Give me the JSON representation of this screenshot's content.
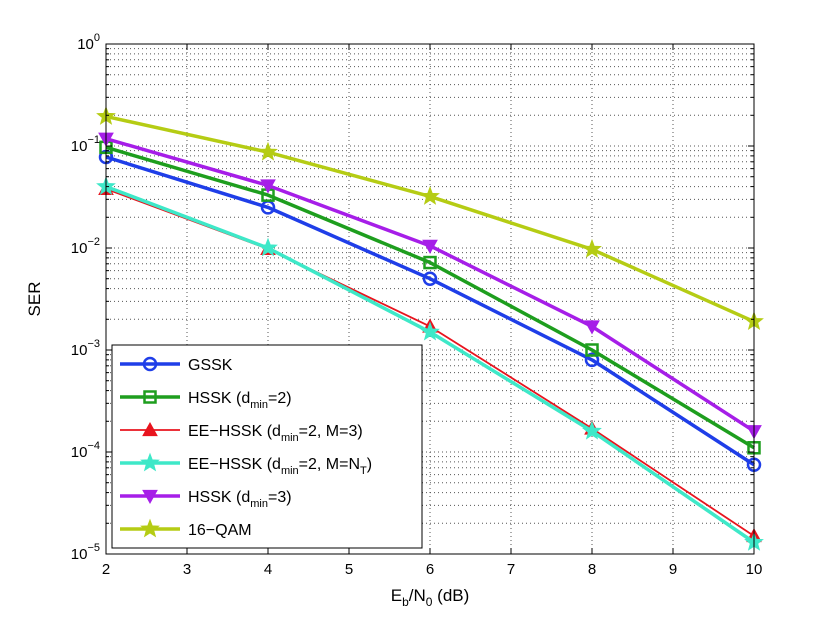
{
  "chart_data": {
    "type": "line",
    "title": "",
    "xlabel": {
      "base": "E",
      "sub1": "b",
      "mid": "/N",
      "sub2": "0",
      "tail": " (dB)"
    },
    "ylabel": "SER",
    "xlim": [
      2,
      10
    ],
    "ylim": [
      1e-05,
      1
    ],
    "yscale": "log",
    "grid": true,
    "legend_position": "bottom-left",
    "x_ticks": [
      2,
      3,
      4,
      5,
      6,
      7,
      8,
      9,
      10
    ],
    "y_ticks": [
      {
        "value": 1,
        "base": "10",
        "exp": "0"
      },
      {
        "value": 0.1,
        "base": "10",
        "exp": "−1"
      },
      {
        "value": 0.01,
        "base": "10",
        "exp": "−2"
      },
      {
        "value": 0.001,
        "base": "10",
        "exp": "−3"
      },
      {
        "value": 0.0001,
        "base": "10",
        "exp": "−4"
      },
      {
        "value": 1e-05,
        "base": "10",
        "exp": "−5"
      }
    ],
    "series": [
      {
        "id": "gssk",
        "name": "GSSK",
        "label_parts": [
          {
            "t": "GSSK"
          }
        ],
        "color": "#1f3ee8",
        "marker": "circle",
        "stroke": 3.5,
        "x": [
          2,
          4,
          6,
          8,
          10
        ],
        "y": [
          0.078,
          0.025,
          0.005,
          0.0008,
          7.5e-05
        ]
      },
      {
        "id": "hssk2",
        "name": "HSSK (dmin=2)",
        "label_parts": [
          {
            "t": "HSSK (d"
          },
          {
            "t": "min",
            "sub": true
          },
          {
            "t": "=2)"
          }
        ],
        "color": "#1e9e1e",
        "marker": "square",
        "stroke": 3.5,
        "x": [
          2,
          4,
          6,
          8,
          10
        ],
        "y": [
          0.097,
          0.033,
          0.0072,
          0.001,
          0.00011
        ]
      },
      {
        "id": "eehssk3",
        "name": "EE-HSSK (dmin=2, M=3)",
        "label_parts": [
          {
            "t": "EE−HSSK (d"
          },
          {
            "t": "min",
            "sub": true
          },
          {
            "t": "=2, M=3)"
          }
        ],
        "color": "#e8141e",
        "marker": "triangle-up",
        "stroke": 1.8,
        "x": [
          2,
          4,
          6,
          8,
          10
        ],
        "y": [
          0.038,
          0.0098,
          0.0017,
          0.00017,
          1.5e-05
        ]
      },
      {
        "id": "eehsskNT",
        "name": "EE-HSSK (dmin=2, M=NT)",
        "label_parts": [
          {
            "t": "EE−HSSK (d"
          },
          {
            "t": "min",
            "sub": true
          },
          {
            "t": "=2, M=N"
          },
          {
            "t": "T",
            "sub": true
          },
          {
            "t": ")"
          }
        ],
        "color": "#3ee8c8",
        "marker": "star",
        "stroke": 3.5,
        "x": [
          2,
          4,
          6,
          8,
          10
        ],
        "y": [
          0.04,
          0.01,
          0.0015,
          0.00016,
          1.3e-05
        ]
      },
      {
        "id": "hssk3",
        "name": "HSSK (dmin=3)",
        "label_parts": [
          {
            "t": "HSSK (d"
          },
          {
            "t": "min",
            "sub": true
          },
          {
            "t": "=3)"
          }
        ],
        "color": "#a61ee8",
        "marker": "triangle-down",
        "stroke": 3.5,
        "x": [
          2,
          4,
          6,
          8,
          10
        ],
        "y": [
          0.118,
          0.041,
          0.0105,
          0.0017,
          0.00016
        ]
      },
      {
        "id": "qam16",
        "name": "16-QAM",
        "label_parts": [
          {
            "t": "16−QAM"
          }
        ],
        "color": "#b5cc14",
        "marker": "star",
        "stroke": 3.5,
        "x": [
          2,
          4,
          6,
          8,
          10
        ],
        "y": [
          0.195,
          0.087,
          0.032,
          0.0097,
          0.0019
        ]
      }
    ]
  }
}
